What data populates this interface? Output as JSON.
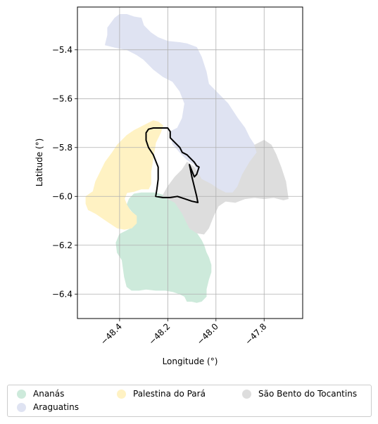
{
  "chart_data": {
    "type": "map",
    "xlabel": "Longitude (°)",
    "ylabel": "Latitude (°)",
    "xlim": [
      -48.575,
      -47.64
    ],
    "ylim": [
      -6.5,
      -5.225
    ],
    "xticks": [
      -48.4,
      -48.2,
      -48.0,
      -47.8
    ],
    "xtick_labels": [
      "−48.4",
      "−48.2",
      "−48.0",
      "−47.8"
    ],
    "yticks": [
      -5.4,
      -5.6,
      -5.8,
      -6.0,
      -6.2,
      -6.4
    ],
    "ytick_labels": [
      "−5.4",
      "−5.6",
      "−5.8",
      "−6.0",
      "−6.2",
      "−6.4"
    ],
    "grid": true,
    "legend_position": "bottom-center",
    "regions": [
      {
        "name": "Ananás",
        "color": "#cdeadb",
        "boundary": [
          [
            -48.22,
            -5.995
          ],
          [
            -48.2,
            -6.01
          ],
          [
            -48.17,
            -6.025
          ],
          [
            -48.14,
            -6.07
          ],
          [
            -48.11,
            -6.13
          ],
          [
            -48.08,
            -6.15
          ],
          [
            -48.06,
            -6.18
          ],
          [
            -48.05,
            -6.2
          ],
          [
            -48.04,
            -6.23
          ],
          [
            -48.03,
            -6.25
          ],
          [
            -48.02,
            -6.28
          ],
          [
            -48.02,
            -6.31
          ],
          [
            -48.03,
            -6.34
          ],
          [
            -48.04,
            -6.38
          ],
          [
            -48.04,
            -6.41
          ],
          [
            -48.06,
            -6.43
          ],
          [
            -48.08,
            -6.435
          ],
          [
            -48.1,
            -6.43
          ],
          [
            -48.12,
            -6.43
          ],
          [
            -48.13,
            -6.41
          ],
          [
            -48.15,
            -6.4
          ],
          [
            -48.18,
            -6.39
          ],
          [
            -48.21,
            -6.385
          ],
          [
            -48.25,
            -6.385
          ],
          [
            -48.29,
            -6.38
          ],
          [
            -48.32,
            -6.385
          ],
          [
            -48.35,
            -6.385
          ],
          [
            -48.37,
            -6.37
          ],
          [
            -48.38,
            -6.33
          ],
          [
            -48.39,
            -6.26
          ],
          [
            -48.41,
            -6.23
          ],
          [
            -48.415,
            -6.19
          ],
          [
            -48.4,
            -6.155
          ],
          [
            -48.37,
            -6.14
          ],
          [
            -48.35,
            -6.13
          ],
          [
            -48.33,
            -6.11
          ],
          [
            -48.33,
            -6.08
          ],
          [
            -48.35,
            -6.06
          ],
          [
            -48.37,
            -6.035
          ],
          [
            -48.36,
            -6.01
          ],
          [
            -48.34,
            -5.99
          ],
          [
            -48.31,
            -5.985
          ],
          [
            -48.28,
            -5.985
          ],
          [
            -48.25,
            -5.985
          ]
        ]
      },
      {
        "name": "Araguatins",
        "color": "#dfe3f2",
        "boundary": [
          [
            -48.42,
            -5.27
          ],
          [
            -48.4,
            -5.255
          ],
          [
            -48.37,
            -5.255
          ],
          [
            -48.34,
            -5.265
          ],
          [
            -48.31,
            -5.27
          ],
          [
            -48.3,
            -5.3
          ],
          [
            -48.27,
            -5.33
          ],
          [
            -48.24,
            -5.35
          ],
          [
            -48.2,
            -5.365
          ],
          [
            -48.15,
            -5.37
          ],
          [
            -48.12,
            -5.375
          ],
          [
            -48.08,
            -5.39
          ],
          [
            -48.06,
            -5.43
          ],
          [
            -48.04,
            -5.49
          ],
          [
            -48.03,
            -5.54
          ],
          [
            -47.99,
            -5.58
          ],
          [
            -47.95,
            -5.62
          ],
          [
            -47.91,
            -5.68
          ],
          [
            -47.88,
            -5.72
          ],
          [
            -47.86,
            -5.76
          ],
          [
            -47.84,
            -5.79
          ],
          [
            -47.83,
            -5.82
          ],
          [
            -47.86,
            -5.86
          ],
          [
            -47.89,
            -5.91
          ],
          [
            -47.91,
            -5.96
          ],
          [
            -47.93,
            -5.985
          ],
          [
            -47.96,
            -5.985
          ],
          [
            -47.99,
            -5.97
          ],
          [
            -48.02,
            -5.95
          ],
          [
            -48.06,
            -5.93
          ],
          [
            -48.09,
            -5.87
          ],
          [
            -48.12,
            -5.85
          ],
          [
            -48.15,
            -5.82
          ],
          [
            -48.18,
            -5.785
          ],
          [
            -48.19,
            -5.735
          ],
          [
            -48.16,
            -5.72
          ],
          [
            -48.14,
            -5.68
          ],
          [
            -48.13,
            -5.62
          ],
          [
            -48.15,
            -5.57
          ],
          [
            -48.18,
            -5.53
          ],
          [
            -48.22,
            -5.51
          ],
          [
            -48.26,
            -5.48
          ],
          [
            -48.3,
            -5.44
          ],
          [
            -48.33,
            -5.42
          ],
          [
            -48.37,
            -5.4
          ],
          [
            -48.42,
            -5.39
          ],
          [
            -48.46,
            -5.38
          ],
          [
            -48.455,
            -5.36
          ],
          [
            -48.45,
            -5.34
          ],
          [
            -48.45,
            -5.31
          ]
        ]
      },
      {
        "name": "Palestina do Pará",
        "color": "#fff2c3",
        "boundary": [
          [
            -48.37,
            -5.75
          ],
          [
            -48.34,
            -5.73
          ],
          [
            -48.3,
            -5.71
          ],
          [
            -48.26,
            -5.69
          ],
          [
            -48.24,
            -5.695
          ],
          [
            -48.22,
            -5.71
          ],
          [
            -48.23,
            -5.74
          ],
          [
            -48.25,
            -5.78
          ],
          [
            -48.26,
            -5.84
          ],
          [
            -48.27,
            -5.9
          ],
          [
            -48.27,
            -5.95
          ],
          [
            -48.28,
            -5.97
          ],
          [
            -48.31,
            -5.97
          ],
          [
            -48.34,
            -5.98
          ],
          [
            -48.37,
            -5.985
          ],
          [
            -48.38,
            -6.01
          ],
          [
            -48.37,
            -6.035
          ],
          [
            -48.355,
            -6.06
          ],
          [
            -48.33,
            -6.08
          ],
          [
            -48.33,
            -6.11
          ],
          [
            -48.35,
            -6.13
          ],
          [
            -48.38,
            -6.135
          ],
          [
            -48.41,
            -6.13
          ],
          [
            -48.44,
            -6.11
          ],
          [
            -48.47,
            -6.09
          ],
          [
            -48.5,
            -6.07
          ],
          [
            -48.53,
            -6.055
          ],
          [
            -48.54,
            -6.03
          ],
          [
            -48.54,
            -6.0
          ],
          [
            -48.51,
            -5.98
          ],
          [
            -48.5,
            -5.94
          ],
          [
            -48.48,
            -5.9
          ],
          [
            -48.46,
            -5.86
          ],
          [
            -48.43,
            -5.82
          ],
          [
            -48.41,
            -5.79
          ]
        ]
      },
      {
        "name": "São Bento do Tocantins",
        "color": "#dddddd",
        "boundary": [
          [
            -48.12,
            -5.86
          ],
          [
            -48.09,
            -5.88
          ],
          [
            -48.06,
            -5.93
          ],
          [
            -48.02,
            -5.95
          ],
          [
            -47.99,
            -5.97
          ],
          [
            -47.96,
            -5.985
          ],
          [
            -47.93,
            -5.985
          ],
          [
            -47.91,
            -5.96
          ],
          [
            -47.89,
            -5.91
          ],
          [
            -47.86,
            -5.86
          ],
          [
            -47.83,
            -5.82
          ],
          [
            -47.84,
            -5.79
          ],
          [
            -47.8,
            -5.77
          ],
          [
            -47.77,
            -5.79
          ],
          [
            -47.75,
            -5.83
          ],
          [
            -47.73,
            -5.88
          ],
          [
            -47.71,
            -5.94
          ],
          [
            -47.7,
            -6.01
          ],
          [
            -47.72,
            -6.015
          ],
          [
            -47.76,
            -6.005
          ],
          [
            -47.8,
            -6.01
          ],
          [
            -47.84,
            -6.005
          ],
          [
            -47.88,
            -6.01
          ],
          [
            -47.92,
            -6.025
          ],
          [
            -47.96,
            -6.02
          ],
          [
            -47.99,
            -6.04
          ],
          [
            -48.01,
            -6.08
          ],
          [
            -48.03,
            -6.13
          ],
          [
            -48.05,
            -6.155
          ],
          [
            -48.08,
            -6.15
          ],
          [
            -48.11,
            -6.13
          ],
          [
            -48.14,
            -6.07
          ],
          [
            -48.17,
            -6.025
          ],
          [
            -48.2,
            -6.01
          ],
          [
            -48.22,
            -5.995
          ],
          [
            -48.2,
            -5.96
          ],
          [
            -48.17,
            -5.92
          ],
          [
            -48.14,
            -5.89
          ]
        ]
      }
    ],
    "highlight": {
      "color": "#000000",
      "boundary": [
        [
          -48.28,
          -5.725
        ],
        [
          -48.26,
          -5.72
        ],
        [
          -48.23,
          -5.72
        ],
        [
          -48.2,
          -5.72
        ],
        [
          -48.19,
          -5.735
        ],
        [
          -48.19,
          -5.76
        ],
        [
          -48.17,
          -5.78
        ],
        [
          -48.15,
          -5.8
        ],
        [
          -48.14,
          -5.82
        ],
        [
          -48.12,
          -5.83
        ],
        [
          -48.11,
          -5.84
        ],
        [
          -48.09,
          -5.86
        ],
        [
          -48.08,
          -5.875
        ],
        [
          -48.07,
          -5.88
        ],
        [
          -48.08,
          -5.91
        ],
        [
          -48.09,
          -5.92
        ],
        [
          -48.11,
          -5.87
        ],
        [
          -48.1,
          -5.92
        ],
        [
          -48.09,
          -5.96
        ],
        [
          -48.08,
          -6.0
        ],
        [
          -48.075,
          -6.025
        ],
        [
          -48.1,
          -6.02
        ],
        [
          -48.13,
          -6.01
        ],
        [
          -48.16,
          -6.0
        ],
        [
          -48.19,
          -6.005
        ],
        [
          -48.22,
          -6.005
        ],
        [
          -48.25,
          -6.0
        ],
        [
          -48.245,
          -5.97
        ],
        [
          -48.24,
          -5.93
        ],
        [
          -48.24,
          -5.88
        ],
        [
          -48.26,
          -5.83
        ],
        [
          -48.28,
          -5.8
        ],
        [
          -48.29,
          -5.77
        ],
        [
          -48.29,
          -5.74
        ]
      ]
    }
  },
  "legend": {
    "items": [
      {
        "label": "Ananás",
        "color": "#cdeadb"
      },
      {
        "label": "Araguatins",
        "color": "#dfe3f2"
      },
      {
        "label": "Palestina do Pará",
        "color": "#fff2c3"
      },
      {
        "label": "São Bento do Tocantins",
        "color": "#dddddd"
      }
    ]
  }
}
